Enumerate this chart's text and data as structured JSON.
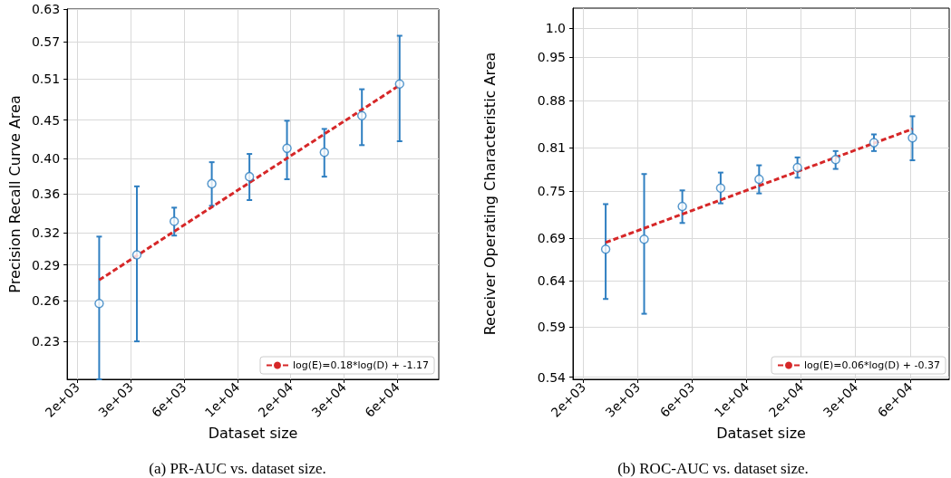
{
  "chart_data": [
    {
      "type": "scatter",
      "xlabel": "Dataset size",
      "ylabel": "Precision Recall Curve Area",
      "annotations": [
        "(a) PR-AUC vs. dataset size."
      ],
      "log": "xy",
      "grid": true,
      "legend": "bottom right",
      "marker": "circle",
      "xlim": [
        1592,
        88100
      ],
      "ylim": [
        0.205,
        0.63
      ],
      "xticks": [
        {
          "value": 1778.28,
          "label": "2e+03"
        },
        {
          "value": 3162.28,
          "label": "3e+03"
        },
        {
          "value": 5623.41,
          "label": "6e+03"
        },
        {
          "value": 10000,
          "label": "1e+04"
        },
        {
          "value": 17782.8,
          "label": "2e+04"
        },
        {
          "value": 31622.8,
          "label": "3e+04"
        },
        {
          "value": 56234.1,
          "label": "6e+04"
        }
      ],
      "yticks": [
        0.23,
        0.26,
        0.29,
        0.32,
        0.36,
        {
          "value": 0.4,
          "label": "0.40"
        },
        0.45,
        0.51,
        0.57,
        0.63
      ],
      "series": [
        {
          "color": "#2f7fc1",
          "x": [
            2250,
            3380,
            5060,
            7590,
            11400,
            17100,
            25600,
            38400,
            57700
          ],
          "values": [
            0.258,
            0.299,
            0.331,
            0.371,
            0.379,
            0.413,
            0.408,
            0.456,
            0.502
          ],
          "errors": [
            [
              0.205,
              0.316
            ],
            [
              0.23,
              0.368
            ],
            [
              0.317,
              0.345
            ],
            [
              0.347,
              0.396
            ],
            [
              0.353,
              0.406
            ],
            [
              0.376,
              0.449
            ],
            [
              0.379,
              0.438
            ],
            [
              0.417,
              0.494
            ],
            [
              0.422,
              0.581
            ]
          ]
        },
        {
          "type": "line",
          "name": "log(E)=0.18*log(D) + -1.17",
          "color": "#d62728",
          "line_style": "dashed",
          "marker": "none",
          "x": [
            2250,
            57700
          ],
          "values": [
            0.277,
            0.5
          ]
        }
      ]
    },
    {
      "type": "scatter",
      "xlabel": "Dataset size",
      "ylabel": "Receiver Operating Characteristic Area",
      "annotations": [
        "(b) ROC-AUC vs. dataset size."
      ],
      "log": "xy",
      "grid": true,
      "legend": "bottom right",
      "marker": "circle",
      "xlim": [
        1592,
        85100
      ],
      "ylim": [
        0.538,
        1.036
      ],
      "xticks": [
        {
          "value": 1778.28,
          "label": "2e+03"
        },
        {
          "value": 3162.28,
          "label": "3e+03"
        },
        {
          "value": 5623.41,
          "label": "6e+03"
        },
        {
          "value": 10000,
          "label": "1e+04"
        },
        {
          "value": 17782.8,
          "label": "2e+04"
        },
        {
          "value": 31622.8,
          "label": "3e+04"
        },
        {
          "value": 56234.1,
          "label": "6e+04"
        }
      ],
      "yticks": [
        0.54,
        0.59,
        0.64,
        0.69,
        0.75,
        0.81,
        0.88,
        0.95,
        {
          "value": 1,
          "label": "1.0"
        }
      ],
      "series": [
        {
          "color": "#2f7fc1",
          "x": [
            2250,
            3380,
            5060,
            7590,
            11400,
            17100,
            25600,
            38400,
            57700
          ],
          "values": [
            0.677,
            0.689,
            0.73,
            0.754,
            0.766,
            0.782,
            0.793,
            0.817,
            0.824
          ],
          "errors": [
            [
              0.62,
              0.733
            ],
            [
              0.604,
              0.773
            ],
            [
              0.709,
              0.751
            ],
            [
              0.734,
              0.775
            ],
            [
              0.747,
              0.785
            ],
            [
              0.768,
              0.796
            ],
            [
              0.78,
              0.805
            ],
            [
              0.805,
              0.829
            ],
            [
              0.792,
              0.856
            ]
          ]
        },
        {
          "type": "line",
          "name": "log(E)=0.06*log(D) + -0.37",
          "color": "#d62728",
          "line_style": "dashed",
          "marker": "none",
          "x": [
            2250,
            57700
          ],
          "values": [
            0.685,
            0.837
          ]
        }
      ]
    }
  ]
}
